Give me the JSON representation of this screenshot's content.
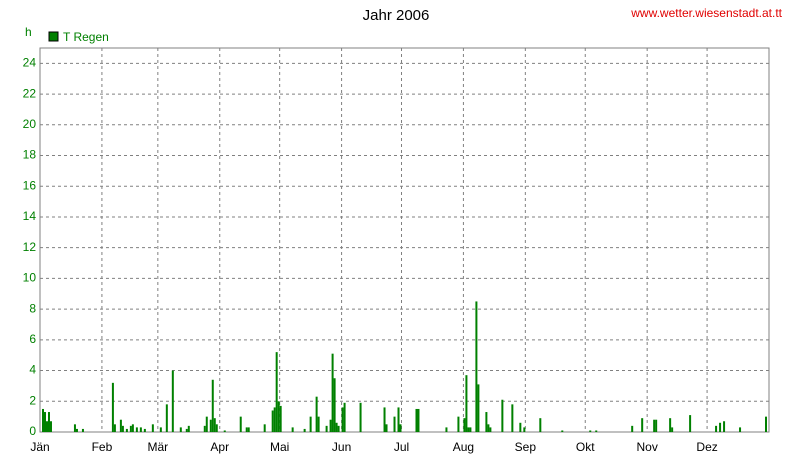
{
  "chart_data": {
    "type": "bar",
    "title": "Jahr 2006",
    "source": "www.wetter.wiesenstadt.at.tt",
    "y_label": "h",
    "series": [
      {
        "name": "T Regen",
        "color": "#008000",
        "x": [
          2,
          3,
          4,
          5,
          6,
          18,
          19,
          22,
          37,
          38,
          41,
          42,
          44,
          46,
          47,
          49,
          51,
          53,
          57,
          61,
          64,
          67,
          71,
          74,
          75,
          83,
          84,
          86,
          87,
          88,
          89,
          93,
          101,
          104,
          105,
          113,
          117,
          118,
          119,
          120,
          121,
          127,
          133,
          136,
          139,
          140,
          144,
          146,
          147,
          148,
          149,
          150,
          152,
          153,
          161,
          173,
          174,
          178,
          180,
          181,
          189,
          190,
          204,
          210,
          213,
          214,
          215,
          216,
          219,
          220,
          224,
          225,
          226,
          232,
          237,
          241,
          243,
          251,
          262,
          276,
          279,
          297,
          302,
          308,
          309,
          316,
          317,
          326,
          339,
          341,
          343,
          351,
          364
        ],
        "values": [
          1.5,
          1.3,
          0.7,
          1.3,
          0.7,
          0.5,
          0.2,
          0.2,
          3.2,
          0.5,
          0.8,
          0.4,
          0.2,
          0.4,
          0.5,
          0.3,
          0.3,
          0.2,
          0.5,
          0.3,
          1.8,
          4.0,
          0.3,
          0.2,
          0.4,
          0.4,
          1.0,
          0.8,
          3.4,
          0.9,
          0.5,
          0.1,
          1.0,
          0.3,
          0.3,
          0.5,
          1.4,
          1.6,
          5.2,
          2.0,
          1.7,
          0.3,
          0.2,
          1.0,
          2.3,
          1.0,
          0.4,
          0.8,
          5.1,
          3.5,
          0.6,
          0.4,
          1.6,
          1.9,
          1.9,
          1.6,
          0.5,
          1.0,
          1.6,
          0.5,
          1.5,
          1.5,
          0.3,
          1.0,
          0.9,
          3.7,
          0.3,
          0.3,
          8.5,
          3.1,
          1.3,
          0.5,
          0.3,
          2.1,
          1.8,
          0.6,
          0.3,
          0.9,
          0.1,
          0.1,
          0.1,
          0.4,
          0.9,
          0.8,
          0.8,
          0.9,
          0.3,
          1.1,
          0.4,
          0.6,
          0.7,
          0.3,
          1.0
        ]
      }
    ],
    "xlim": [
      1,
      366
    ],
    "xticks": [
      {
        "value": 1,
        "label": "Jän"
      },
      {
        "value": 32,
        "label": "Feb"
      },
      {
        "value": 60,
        "label": "Mär"
      },
      {
        "value": 91,
        "label": "Apr"
      },
      {
        "value": 121,
        "label": "Mai"
      },
      {
        "value": 152,
        "label": "Jun"
      },
      {
        "value": 182,
        "label": "Jul"
      },
      {
        "value": 213,
        "label": "Aug"
      },
      {
        "value": 244,
        "label": "Sep"
      },
      {
        "value": 274,
        "label": "Okt"
      },
      {
        "value": 305,
        "label": "Nov"
      },
      {
        "value": 335,
        "label": "Dez"
      }
    ],
    "ylim": [
      0,
      25
    ],
    "yticks": [
      0,
      2,
      4,
      6,
      8,
      10,
      12,
      14,
      16,
      18,
      20,
      22,
      24
    ],
    "grid": true
  }
}
